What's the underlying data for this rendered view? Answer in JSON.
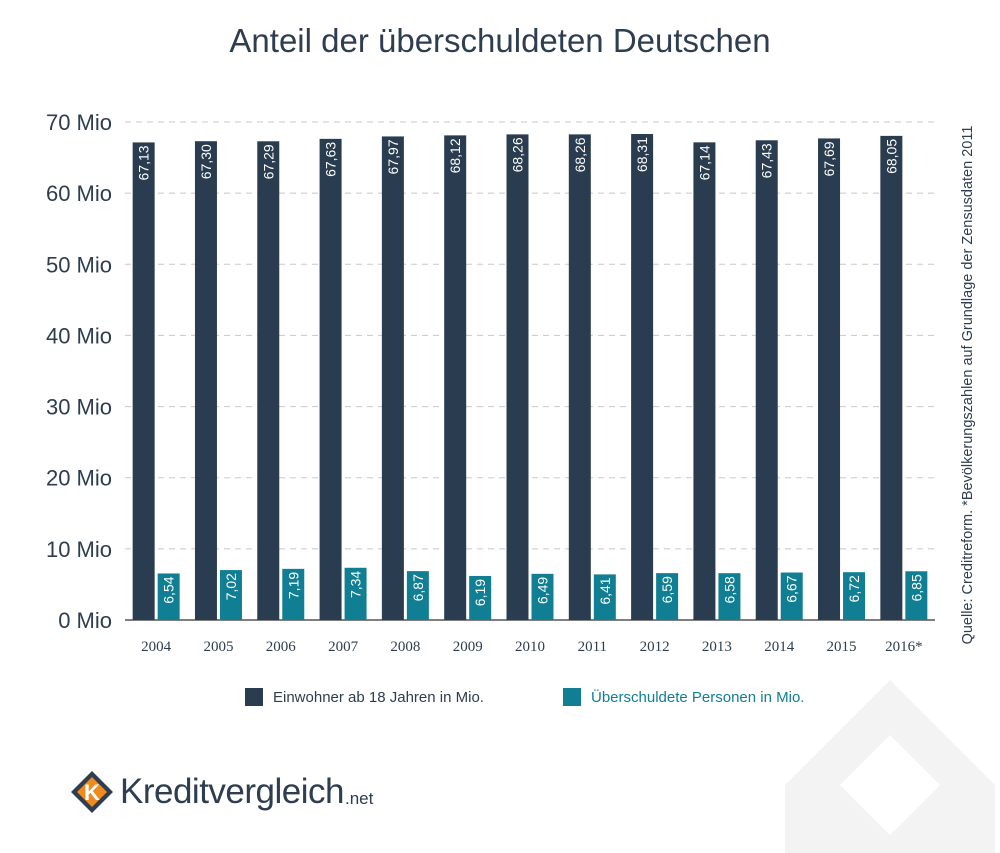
{
  "chart_data": {
    "type": "bar",
    "title": "Anteil der überschuldeten Deutschen",
    "categories": [
      "2004",
      "2005",
      "2006",
      "2007",
      "2008",
      "2009",
      "2010",
      "2011",
      "2012",
      "2013",
      "2014",
      "2015",
      "2016*"
    ],
    "series": [
      {
        "name": "Einwohner ab 18 Jahren in Mio.",
        "color": "#2a3c4f",
        "values": [
          67.13,
          67.3,
          67.29,
          67.63,
          67.97,
          68.12,
          68.26,
          68.26,
          68.31,
          67.14,
          67.43,
          67.69,
          68.05
        ],
        "labels": [
          "67,13",
          "67,30",
          "67,29",
          "67,63",
          "67,97",
          "68,12",
          "68,26",
          "68,26",
          "68,31",
          "67,14",
          "67,43",
          "67,69",
          "68,05"
        ]
      },
      {
        "name": "Überschuldete Personen in Mio.",
        "color": "#117f93",
        "values": [
          6.54,
          7.02,
          7.19,
          7.34,
          6.87,
          6.19,
          6.49,
          6.41,
          6.59,
          6.58,
          6.67,
          6.72,
          6.85
        ],
        "labels": [
          "6,54",
          "7,02",
          "7,19",
          "7,34",
          "6,87",
          "6,19",
          "6,49",
          "6,41",
          "6,59",
          "6,58",
          "6,67",
          "6,72",
          "6,85"
        ]
      }
    ],
    "yticks": [
      0,
      10,
      20,
      30,
      40,
      50,
      60,
      70
    ],
    "ytick_labels": [
      "0 Mio",
      "10 Mio",
      "20 Mio",
      "30 Mio",
      "40 Mio",
      "50 Mio",
      "60 Mio",
      "70 Mio"
    ],
    "ylim": [
      0,
      70
    ],
    "grid": true,
    "legend_position": "bottom",
    "source": "Quelle:  Creditreform. *Bevölkerungszahlen auf Grundlage der Zensusdaten 2011"
  },
  "logo": {
    "text": "Kreditvergleich",
    "suffix": ".net",
    "icon": "kreditvergleich-k-logo"
  },
  "colors": {
    "text": "#2e3d4f",
    "grid": "#c8c8c8",
    "logo_orange": "#f08a1d",
    "watermark": "#f2f2f2"
  }
}
